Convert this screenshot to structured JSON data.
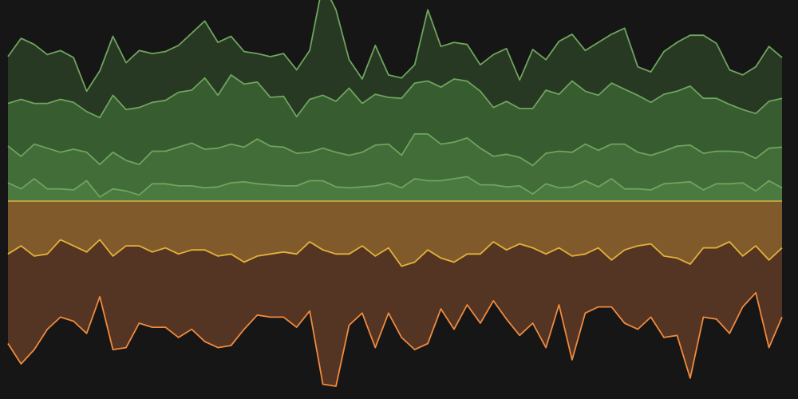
{
  "chart_data": {
    "type": "area",
    "description_note": "",
    "title": "",
    "xlabel": "",
    "ylabel": "",
    "xlim": [
      0,
      59
    ],
    "ylim": [
      -9,
      9
    ],
    "grid": false,
    "legend": "none",
    "baseline": 0,
    "x": [
      0,
      1,
      2,
      3,
      4,
      5,
      6,
      7,
      8,
      9,
      10,
      11,
      12,
      13,
      14,
      15,
      16,
      17,
      18,
      19,
      20,
      21,
      22,
      23,
      24,
      25,
      26,
      27,
      28,
      29,
      30,
      31,
      32,
      33,
      34,
      35,
      36,
      37,
      38,
      39,
      40,
      41,
      42,
      43,
      44,
      45,
      46,
      47,
      48,
      49,
      50,
      51,
      52,
      53,
      54,
      55,
      56,
      57,
      58,
      59
    ],
    "series": [
      {
        "side": "positive",
        "stack_order": 1,
        "stroke": "#6fa45e",
        "fill": "#4a7a3f",
        "values": [
          0.9,
          0.6,
          1.1,
          0.6,
          0.6,
          0.55,
          1.0,
          0.2,
          0.6,
          0.5,
          0.3,
          0.85,
          0.85,
          0.75,
          0.75,
          0.65,
          0.7,
          0.9,
          0.95,
          0.85,
          0.8,
          0.75,
          0.75,
          1.0,
          1.0,
          0.7,
          0.65,
          0.7,
          0.75,
          0.9,
          0.65,
          1.1,
          1.0,
          1.0,
          1.1,
          1.2,
          0.8,
          0.8,
          0.7,
          0.75,
          0.35,
          0.85,
          0.65,
          0.7,
          1.0,
          0.7,
          1.1,
          0.6,
          0.6,
          0.55,
          0.85,
          0.9,
          0.95,
          0.55,
          0.85,
          0.85,
          0.9,
          0.5,
          1.0,
          0.65
        ]
      },
      {
        "side": "positive",
        "stack_order": 2,
        "stroke": "#6fa45e",
        "fill": "#426c38",
        "values": [
          1.8,
          1.6,
          1.7,
          2.0,
          1.8,
          2.0,
          1.4,
          1.6,
          1.8,
          1.5,
          1.5,
          1.6,
          1.6,
          1.9,
          2.1,
          1.9,
          1.9,
          1.9,
          1.7,
          2.2,
          1.9,
          1.9,
          1.6,
          1.4,
          1.6,
          1.7,
          1.6,
          1.7,
          2.0,
          1.9,
          1.6,
          2.2,
          2.3,
          1.8,
          1.8,
          1.9,
          1.8,
          1.4,
          1.6,
          1.4,
          1.4,
          1.5,
          1.8,
          1.7,
          1.8,
          1.8,
          1.7,
          2.2,
          1.8,
          1.7,
          1.6,
          1.8,
          1.8,
          1.8,
          1.6,
          1.6,
          1.5,
          1.6,
          1.6,
          2.0
        ]
      },
      {
        "side": "positive",
        "stack_order": 3,
        "stroke": "#6fa45e",
        "fill": "#365c30",
        "values": [
          2.1,
          2.8,
          2.0,
          2.2,
          2.6,
          2.3,
          2.0,
          2.3,
          2.8,
          2.5,
          2.8,
          2.4,
          2.5,
          2.7,
          2.6,
          3.5,
          2.6,
          3.4,
          3.1,
          2.8,
          2.4,
          2.5,
          1.8,
          2.6,
          2.6,
          2.5,
          3.3,
          2.4,
          2.5,
          2.3,
          2.8,
          2.5,
          2.6,
          2.8,
          3.1,
          2.8,
          2.8,
          2.4,
          2.6,
          2.4,
          2.8,
          3.1,
          2.8,
          3.5,
          2.6,
          2.7,
          3.0,
          2.7,
          2.8,
          2.6,
          2.8,
          2.7,
          2.9,
          2.7,
          2.6,
          2.3,
          2.1,
          2.2,
          2.3,
          2.4
        ]
      },
      {
        "side": "positive",
        "stack_order": 4,
        "stroke": "#6fa45e",
        "fill": "#273823",
        "values": [
          2.3,
          3.0,
          2.9,
          2.4,
          2.4,
          2.2,
          1.0,
          2.3,
          2.9,
          2.3,
          2.8,
          2.4,
          2.4,
          2.3,
          2.8,
          2.8,
          2.6,
          1.9,
          1.6,
          1.4,
          2.0,
          2.1,
          2.3,
          2.4,
          5.5,
          4.5,
          1.4,
          1.2,
          2.4,
          1.1,
          1.0,
          0.9,
          3.5,
          2.0,
          1.8,
          1.8,
          1.3,
          2.6,
          2.6,
          1.4,
          2.9,
          1.5,
          2.6,
          2.3,
          2.0,
          2.6,
          2.4,
          3.0,
          1.4,
          1.5,
          2.1,
          2.4,
          2.5,
          3.1,
          2.7,
          1.7,
          1.7,
          2.3,
          2.7,
          2.0
        ]
      },
      {
        "side": "negative",
        "stack_order": 1,
        "stroke": "#e2b23a",
        "fill": "#815a2b",
        "values": [
          2.6,
          2.2,
          2.7,
          2.6,
          1.9,
          2.2,
          2.5,
          1.9,
          2.7,
          2.2,
          2.2,
          2.5,
          2.3,
          2.6,
          2.4,
          2.4,
          2.7,
          2.6,
          3.0,
          2.7,
          2.6,
          2.5,
          2.6,
          2.0,
          2.4,
          2.6,
          2.6,
          2.2,
          2.7,
          2.3,
          3.2,
          3.0,
          2.4,
          2.8,
          3.0,
          2.6,
          2.6,
          2.0,
          2.4,
          2.1,
          2.3,
          2.6,
          2.3,
          2.7,
          2.6,
          2.3,
          2.9,
          2.4,
          2.2,
          2.1,
          2.7,
          2.8,
          3.1,
          2.3,
          2.3,
          2.0,
          2.7,
          2.2,
          2.9,
          2.3
        ]
      },
      {
        "side": "negative",
        "stack_order": 2,
        "stroke": "#f08a3e",
        "fill": "#543422",
        "values": [
          4.4,
          5.8,
          4.6,
          3.7,
          3.8,
          3.7,
          4.0,
          2.8,
          4.6,
          5.0,
          3.8,
          3.7,
          3.9,
          4.1,
          3.9,
          4.5,
          4.5,
          4.5,
          3.3,
          2.9,
          3.1,
          3.2,
          3.6,
          3.4,
          6.6,
          6.5,
          3.5,
          3.3,
          4.5,
          3.2,
          3.5,
          4.3,
          4.6,
          2.5,
          3.3,
          2.5,
          3.4,
          2.9,
          3.4,
          4.5,
          3.7,
          4.6,
          2.8,
          5.1,
          2.9,
          2.9,
          2.3,
          3.6,
          4.1,
          3.6,
          4.0,
          3.8,
          5.6,
          3.4,
          3.5,
          4.5,
          2.5,
          2.3,
          4.3,
          3.4
        ]
      }
    ]
  }
}
